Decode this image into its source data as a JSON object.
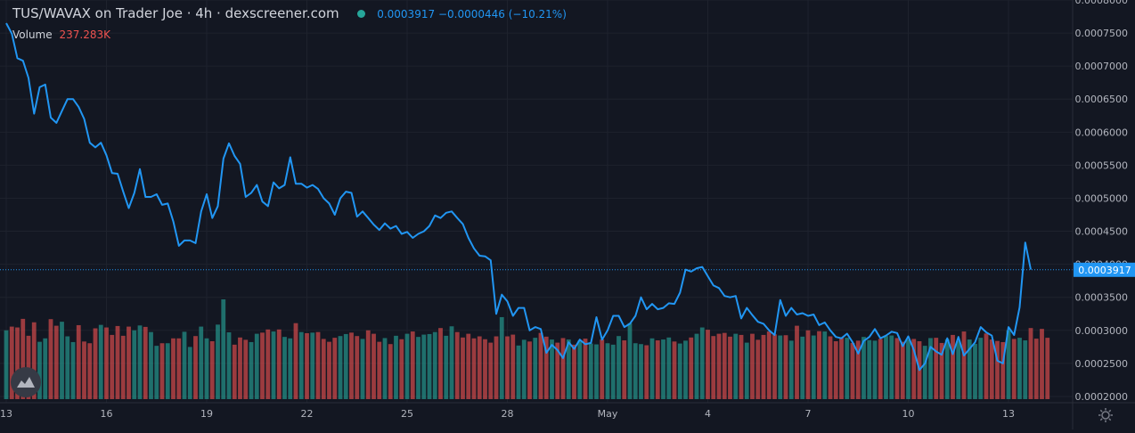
{
  "header": {
    "title": "TUS/WAVAX on Trader Joe · 4h · dexscreener.com",
    "last": "0.0003917",
    "change": "−0.0000446",
    "change_pct": "(−10.21%)"
  },
  "volume": {
    "label": "Volume",
    "value": "237.283K"
  },
  "price_tag": "0.0003917",
  "colors": {
    "background": "#131722",
    "line": "#2196f3",
    "up": "#26a69a",
    "down": "#ef5350",
    "text": "#b2b5be"
  },
  "icons": {
    "logo": "dexscreener-logo-icon",
    "settings": "gear-icon"
  },
  "chart_data": {
    "type": "line",
    "title": "TUS/WAVAX on Trader Joe · 4h · dexscreener.com",
    "ylim": [
      0.0001905,
      0.0008
    ],
    "yticks": [
      "0.0002000",
      "0.0002500",
      "0.0003000",
      "0.0003500",
      "0.0004000",
      "0.0004500",
      "0.0005000",
      "0.0005500",
      "0.0006000",
      "0.0006500",
      "0.0007000",
      "0.0007500",
      "0.0008000"
    ],
    "xticks": [
      {
        "label": "13",
        "x": 0
      },
      {
        "label": "16",
        "x": 18
      },
      {
        "label": "19",
        "x": 36
      },
      {
        "label": "22",
        "x": 54
      },
      {
        "label": "25",
        "x": 72
      },
      {
        "label": "28",
        "x": 90
      },
      {
        "label": "May",
        "x": 108
      },
      {
        "label": "4",
        "x": 126
      },
      {
        "label": "7",
        "x": 144
      },
      {
        "label": "10",
        "x": 162
      },
      {
        "label": "13",
        "x": 180
      }
    ],
    "last_value": 0.0003917,
    "series": [
      {
        "values": [
          0.000765,
          0.000749,
          0.000712,
          0.000708,
          0.000682,
          0.000628,
          0.000668,
          0.000672,
          0.000622,
          0.000614,
          0.000632,
          0.00065,
          0.00065,
          0.000638,
          0.00062,
          0.000584,
          0.000577,
          0.000584,
          0.000565,
          0.000538,
          0.000537,
          0.00051,
          0.000485,
          0.000508,
          0.000544,
          0.000502,
          0.000502,
          0.000506,
          0.00049,
          0.000492,
          0.000465,
          0.000428,
          0.000436,
          0.000436,
          0.000432,
          0.00048,
          0.000506,
          0.00047,
          0.000488,
          0.00056,
          0.000583,
          0.000564,
          0.000552,
          0.000502,
          0.000508,
          0.00052,
          0.000495,
          0.000488,
          0.000524,
          0.000515,
          0.00052,
          0.000562,
          0.000522,
          0.000522,
          0.000516,
          0.00052,
          0.000514,
          0.0005,
          0.000492,
          0.000475,
          0.0005,
          0.00051,
          0.000508,
          0.000472,
          0.00048,
          0.00047,
          0.00046,
          0.000452,
          0.000462,
          0.000454,
          0.000458,
          0.000446,
          0.000449,
          0.00044,
          0.000446,
          0.00045,
          0.000458,
          0.000474,
          0.00047,
          0.000478,
          0.00048,
          0.00047,
          0.000461,
          0.00044,
          0.000424,
          0.000413,
          0.000412,
          0.000406,
          0.000325,
          0.000354,
          0.000344,
          0.000322,
          0.000334,
          0.000334,
          0.0003,
          0.000305,
          0.000302,
          0.000266,
          0.000278,
          0.00027,
          0.000258,
          0.000282,
          0.000272,
          0.000286,
          0.000279,
          0.000281,
          0.00032,
          0.000286,
          0.0003,
          0.000322,
          0.000322,
          0.000305,
          0.00031,
          0.000322,
          0.00035,
          0.000332,
          0.00034,
          0.000332,
          0.000334,
          0.000341,
          0.00034,
          0.000357,
          0.000392,
          0.000389,
          0.000394,
          0.000396,
          0.000382,
          0.000368,
          0.000364,
          0.000352,
          0.00035,
          0.000352,
          0.000318,
          0.000334,
          0.000323,
          0.000313,
          0.00031,
          0.0003,
          0.000293,
          0.000346,
          0.000322,
          0.000334,
          0.000324,
          0.000326,
          0.000322,
          0.000324,
          0.000308,
          0.000312,
          0.0003,
          0.00029,
          0.000288,
          0.000295,
          0.000282,
          0.000265,
          0.000284,
          0.00029,
          0.000302,
          0.000288,
          0.000292,
          0.000298,
          0.000296,
          0.000276,
          0.000291,
          0.00027,
          0.00024,
          0.00025,
          0.000275,
          0.000268,
          0.000263,
          0.000288,
          0.000264,
          0.00029,
          0.000262,
          0.000272,
          0.000282,
          0.000305,
          0.000297,
          0.000292,
          0.000254,
          0.00025,
          0.000305,
          0.000293,
          0.000335,
          0.000433,
          0.000392
        ]
      }
    ],
    "volume": {
      "values": [
        240,
        253,
        250,
        280,
        221,
        268,
        200,
        212,
        279,
        256,
        270,
        219,
        199,
        258,
        201,
        195,
        247,
        259,
        250,
        224,
        255,
        221,
        253,
        240,
        257,
        252,
        234,
        186,
        195,
        195,
        212,
        212,
        235,
        182,
        220,
        253,
        212,
        202,
        260,
        348,
        233,
        190,
        215,
        207,
        199,
        228,
        232,
        243,
        236,
        243,
        217,
        212,
        265,
        234,
        230,
        232,
        234,
        210,
        200,
        214,
        220,
        227,
        232,
        220,
        210,
        240,
        228,
        200,
        213,
        192,
        221,
        209,
        228,
        236,
        217,
        225,
        227,
        234,
        248,
        221,
        254,
        234,
        215,
        228,
        212,
        219,
        209,
        197,
        219,
        286,
        219,
        225,
        187,
        207,
        201,
        214,
        231,
        218,
        208,
        197,
        213,
        208,
        190,
        204,
        211,
        194,
        191,
        208,
        195,
        190,
        220,
        205,
        265,
        195,
        192,
        188,
        212,
        205,
        208,
        215,
        201,
        194,
        204,
        215,
        228,
        250,
        242,
        220,
        228,
        231,
        218,
        228,
        224,
        197,
        228,
        207,
        224,
        236,
        226,
        222,
        223,
        204,
        256,
        218,
        240,
        222,
        237,
        236,
        219,
        202,
        215,
        214,
        196,
        204,
        217,
        206,
        204,
        210,
        220,
        222,
        213,
        200,
        208,
        210,
        202,
        186,
        213,
        214,
        196,
        209,
        224,
        203,
        236,
        208,
        193,
        214,
        229,
        208,
        203,
        199,
        240,
        210,
        214,
        205,
        248,
        211,
        245,
        214
      ]
    }
  }
}
